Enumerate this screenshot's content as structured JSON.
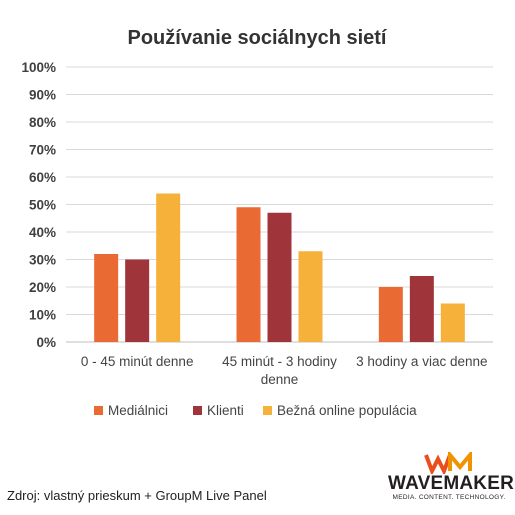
{
  "chart_data": {
    "type": "bar",
    "title": "Používanie sociálnych sietí",
    "categories": [
      "0 - 45 minút denne",
      "45 minút - 3 hodiny denne",
      "3 hodiny a viac denne"
    ],
    "category_lines": [
      [
        "0 - 45 minút denne"
      ],
      [
        "45 minút - 3 hodiny",
        "denne"
      ],
      [
        "3 hodiny a viac denne"
      ]
    ],
    "series": [
      {
        "name": "Mediálnici",
        "color": "#E96A33",
        "values": [
          32,
          49,
          20
        ]
      },
      {
        "name": "Klienti",
        "color": "#A0343B",
        "values": [
          30,
          47,
          24
        ]
      },
      {
        "name": "Bežná online populácia",
        "color": "#F6B13B",
        "values": [
          54,
          33,
          14
        ]
      }
    ],
    "ylim": [
      0,
      100
    ],
    "yticks": [
      "0%",
      "10%",
      "20%",
      "30%",
      "40%",
      "50%",
      "60%",
      "70%",
      "80%",
      "90%",
      "100%"
    ],
    "grid": true,
    "legend_position": "bottom"
  },
  "footer": {
    "source": "Zdroj: vlastný prieskum + GroupM Live Panel"
  },
  "logo": {
    "name": "WAVEMAKER",
    "tagline": "MEDIA. CONTENT. TECHNOLOGY.",
    "colors": [
      "#E94E1B",
      "#F39200"
    ]
  }
}
